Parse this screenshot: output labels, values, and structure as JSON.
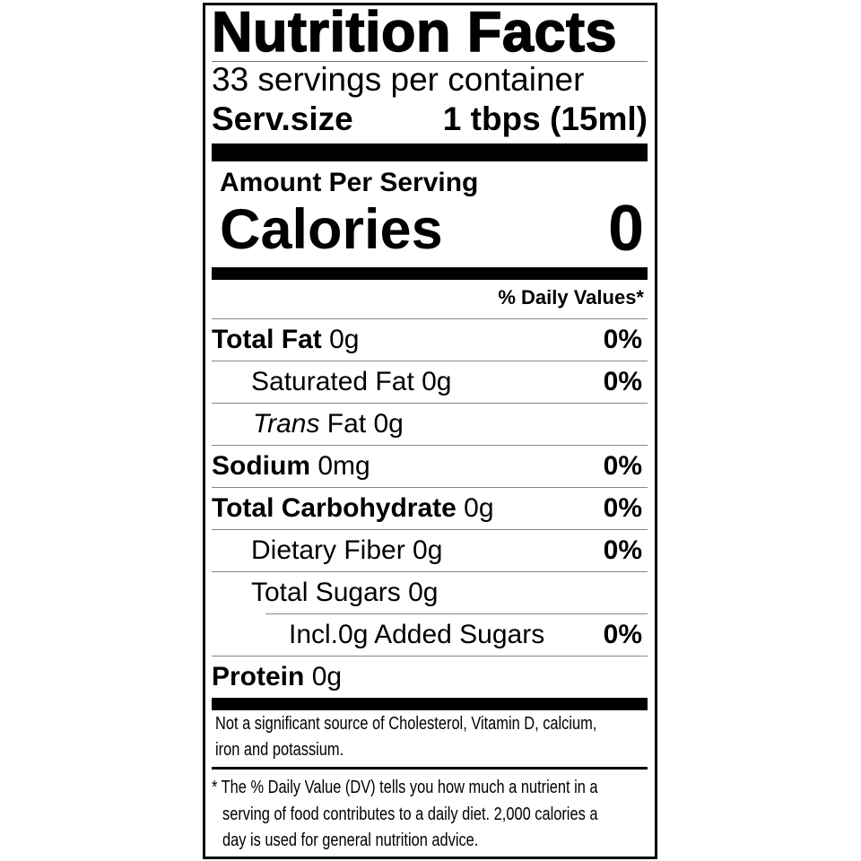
{
  "title": "Nutrition Facts",
  "servings_per_container": "33 servings per container",
  "serving_size": {
    "label": "Serv.size",
    "value": "1 tbps (15ml)"
  },
  "amount_per_serving": "Amount Per Serving",
  "calories": {
    "label": "Calories",
    "value": "0"
  },
  "daily_values_header": "% Daily Values*",
  "nutrients": [
    {
      "bold": "Total Fat",
      "name": "",
      "amount": " 0g",
      "pct": "0%"
    },
    {
      "bold": "",
      "name": "Saturated Fat",
      "amount": " 0g",
      "pct": "0%"
    },
    {
      "bold": "",
      "italic": "Trans",
      "name": " Fat",
      "amount": " 0g",
      "pct": ""
    },
    {
      "bold": "Sodium",
      "name": "",
      "amount": " 0mg",
      "pct": "0%"
    },
    {
      "bold": "Total Carbohydrate",
      "name": "",
      "amount": " 0g",
      "pct": "0%"
    },
    {
      "bold": "",
      "name": "Dietary Fiber",
      "amount": " 0g",
      "pct": "0%"
    },
    {
      "bold": "",
      "name": "Total Sugars",
      "amount": " 0g",
      "pct": ""
    },
    {
      "bold": "",
      "name": "Incl.0g Added Sugars",
      "amount": "",
      "pct": "0%"
    },
    {
      "bold": "Protein",
      "name": "",
      "amount": " 0g",
      "pct": ""
    }
  ],
  "not_significant_lines": [
    "Not a significant source of Cholesterol, Vitamin D, calcium,",
    "iron and potassium."
  ],
  "footnote_lines": [
    "* The % Daily Value (DV) tells you how much a nutrient in a",
    "serving of food contributes to a daily diet. 2,000 calories a",
    "day is used for general nutrition advice."
  ]
}
